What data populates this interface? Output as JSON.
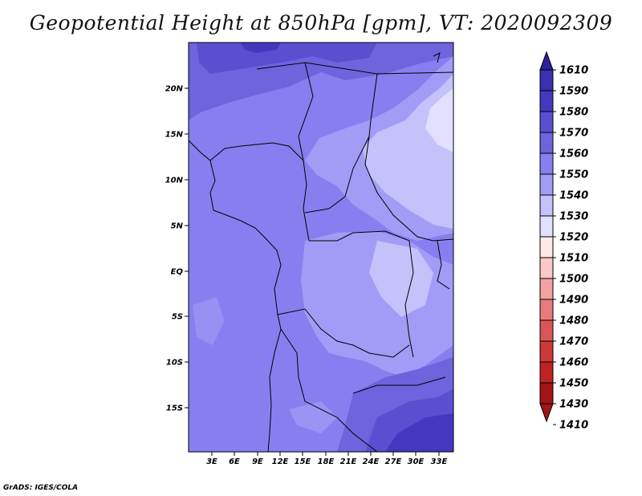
{
  "title": "Geopotential Height at 850hPa [gpm], VT: 2020092309",
  "footer": "GrADS: IGES/COLA",
  "map": {
    "lat_ticks": [
      "20N",
      "15N",
      "10N",
      "5N",
      "EQ",
      "5S",
      "10S",
      "15S"
    ],
    "lon_ticks": [
      "3E",
      "6E",
      "9E",
      "12E",
      "15E",
      "18E",
      "21E",
      "24E",
      "27E",
      "30E",
      "33E"
    ]
  },
  "colorbar": {
    "levels": [
      "1610",
      "1590",
      "1580",
      "1570",
      "1560",
      "1550",
      "1540",
      "1530",
      "1520",
      "1510",
      "1500",
      "1490",
      "1480",
      "1470",
      "1460",
      "1450",
      "1430",
      "1410"
    ],
    "colors": {
      "ge_1590": "#2e1f9c",
      "1580_1590": "#3a2fb0",
      "1570_1580": "#4538c0",
      "1560_1570": "#5a4fd0",
      "1550_1560": "#6d64de",
      "1540_1550": "#877ff0",
      "1530_1540": "#a29cf6",
      "1520_1530": "#c4c1fb",
      "1510_1520": "#e2e0fe",
      "1500_1510": "#ffe8e8",
      "1490_1500": "#fbc8c8",
      "1480_1490": "#f3a2a2",
      "1470_1480": "#e77b7b",
      "1460_1470": "#da5656",
      "1450_1460": "#cd3838",
      "1430_1450": "#bd2222",
      "1410_1430": "#a31414",
      "lt_1410": "#a31414"
    }
  }
}
